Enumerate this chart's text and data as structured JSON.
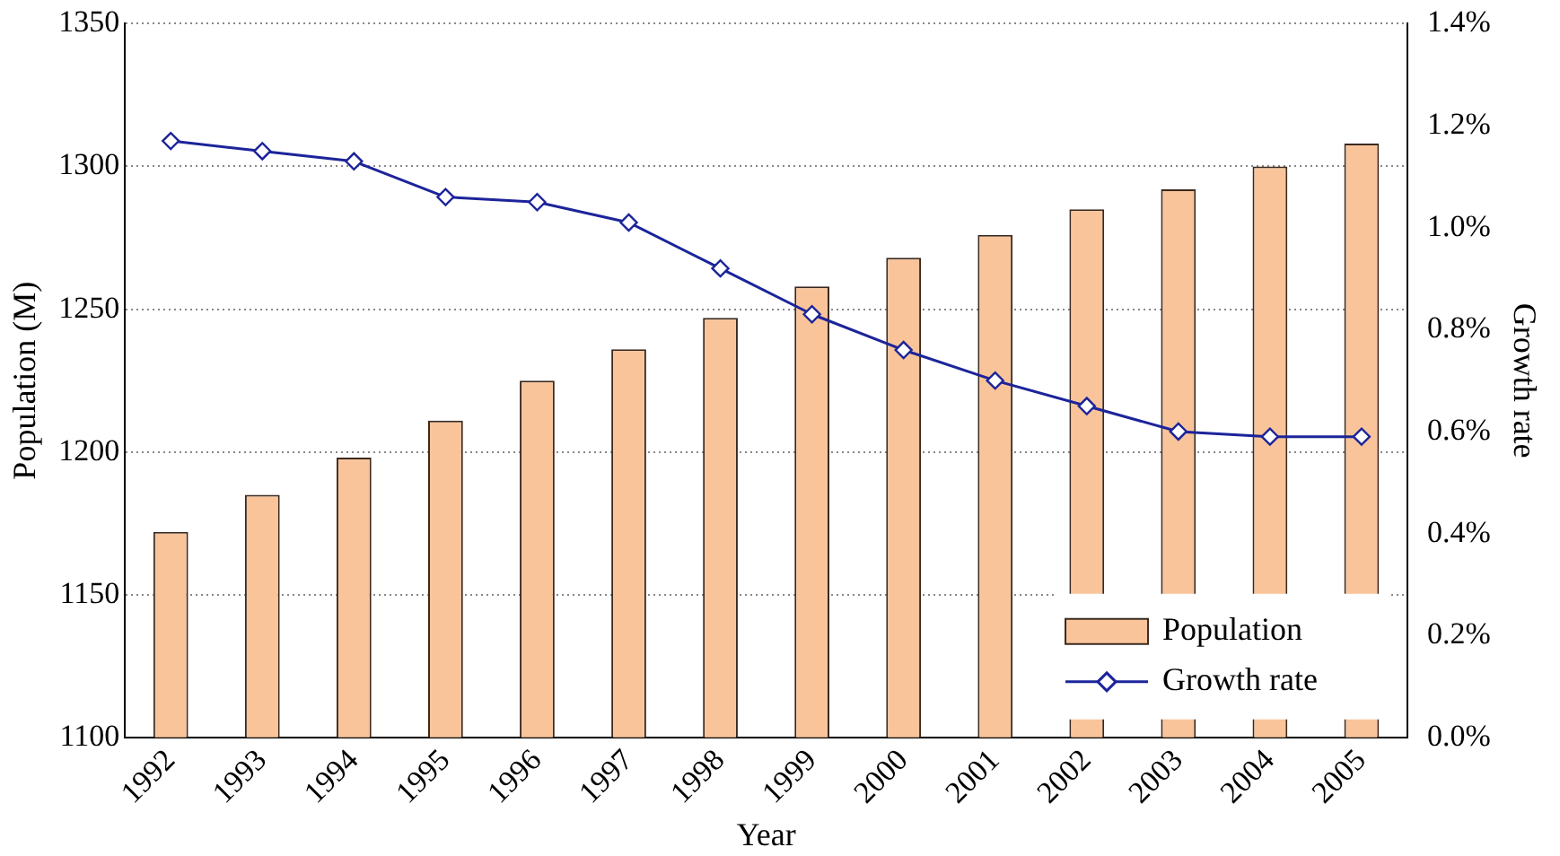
{
  "chart_data": {
    "type": "bar",
    "xlabel": "Year",
    "ylabel": "Population (M)",
    "y2label": "Growth rate",
    "categories": [
      "1992",
      "1993",
      "1994",
      "1995",
      "1996",
      "1997",
      "1998",
      "1999",
      "2000",
      "2001",
      "2002",
      "2003",
      "2004",
      "2005"
    ],
    "series": [
      {
        "name": "Population",
        "color": "#fac49a",
        "values": [
          1172,
          1185,
          1198,
          1211,
          1225,
          1236,
          1247,
          1258,
          1268,
          1276,
          1285,
          1292,
          1300,
          1308
        ]
      },
      {
        "name": "Growth rate",
        "type": "line",
        "axis": "y2",
        "color": "#1c249a",
        "marker": "diamond",
        "values": [
          1.17,
          1.15,
          1.13,
          1.06,
          1.05,
          1.01,
          0.92,
          0.83,
          0.76,
          0.7,
          0.65,
          0.6,
          0.59,
          0.59
        ]
      }
    ],
    "ylim": [
      1100,
      1350
    ],
    "yticks": [
      1100,
      1150,
      1200,
      1250,
      1300,
      1350
    ],
    "y2lim": [
      0,
      1.4
    ],
    "y2ticks": [
      {
        "value": 0,
        "label": "0.0%"
      },
      {
        "value": 0.2,
        "label": "0.2%"
      },
      {
        "value": 0.4,
        "label": "0.4%"
      },
      {
        "value": 0.6,
        "label": "0.6%"
      },
      {
        "value": 0.8,
        "label": "0.8%"
      },
      {
        "value": 1.0,
        "label": "1.0%"
      },
      {
        "value": 1.2,
        "label": "1.2%"
      },
      {
        "value": 1.4,
        "label": "1.4%"
      }
    ],
    "grid": "y",
    "legend": "bottom right"
  }
}
